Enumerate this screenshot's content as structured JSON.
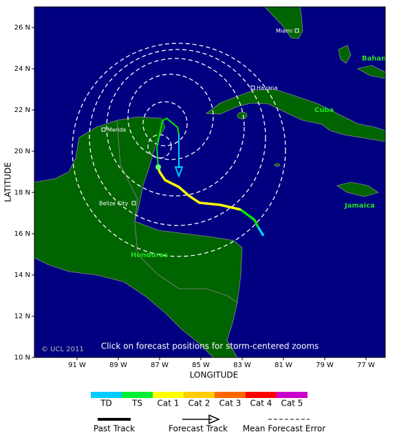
{
  "map": {
    "x_axis_label": "LONGITUDE",
    "y_axis_label": "LATITUDE",
    "x_ticks": [
      "91 W",
      "89 W",
      "87 W",
      "85 W",
      "83 W",
      "81 W",
      "79 W",
      "77 W"
    ],
    "y_ticks": [
      "26 N",
      "24 N",
      "22 N",
      "20 N",
      "18 N",
      "16 N",
      "14 N",
      "12 N",
      "10 N"
    ],
    "cities": [
      "Miami",
      "Havana",
      "Merida",
      "Belize City"
    ],
    "countries": [
      "Cuba",
      "Bahamas",
      "Jamaica",
      "Honduras"
    ],
    "caption": "Click on forecast positions for storm-centered zooms",
    "copyright": "© UCL 2011"
  },
  "legend": {
    "categories": [
      "TD",
      "TS",
      "Cat 1",
      "Cat 2",
      "Cat 3",
      "Cat 4",
      "Cat 5"
    ],
    "lines": [
      "Past Track",
      "Forecast Track",
      "Mean Forecast Error"
    ]
  }
}
